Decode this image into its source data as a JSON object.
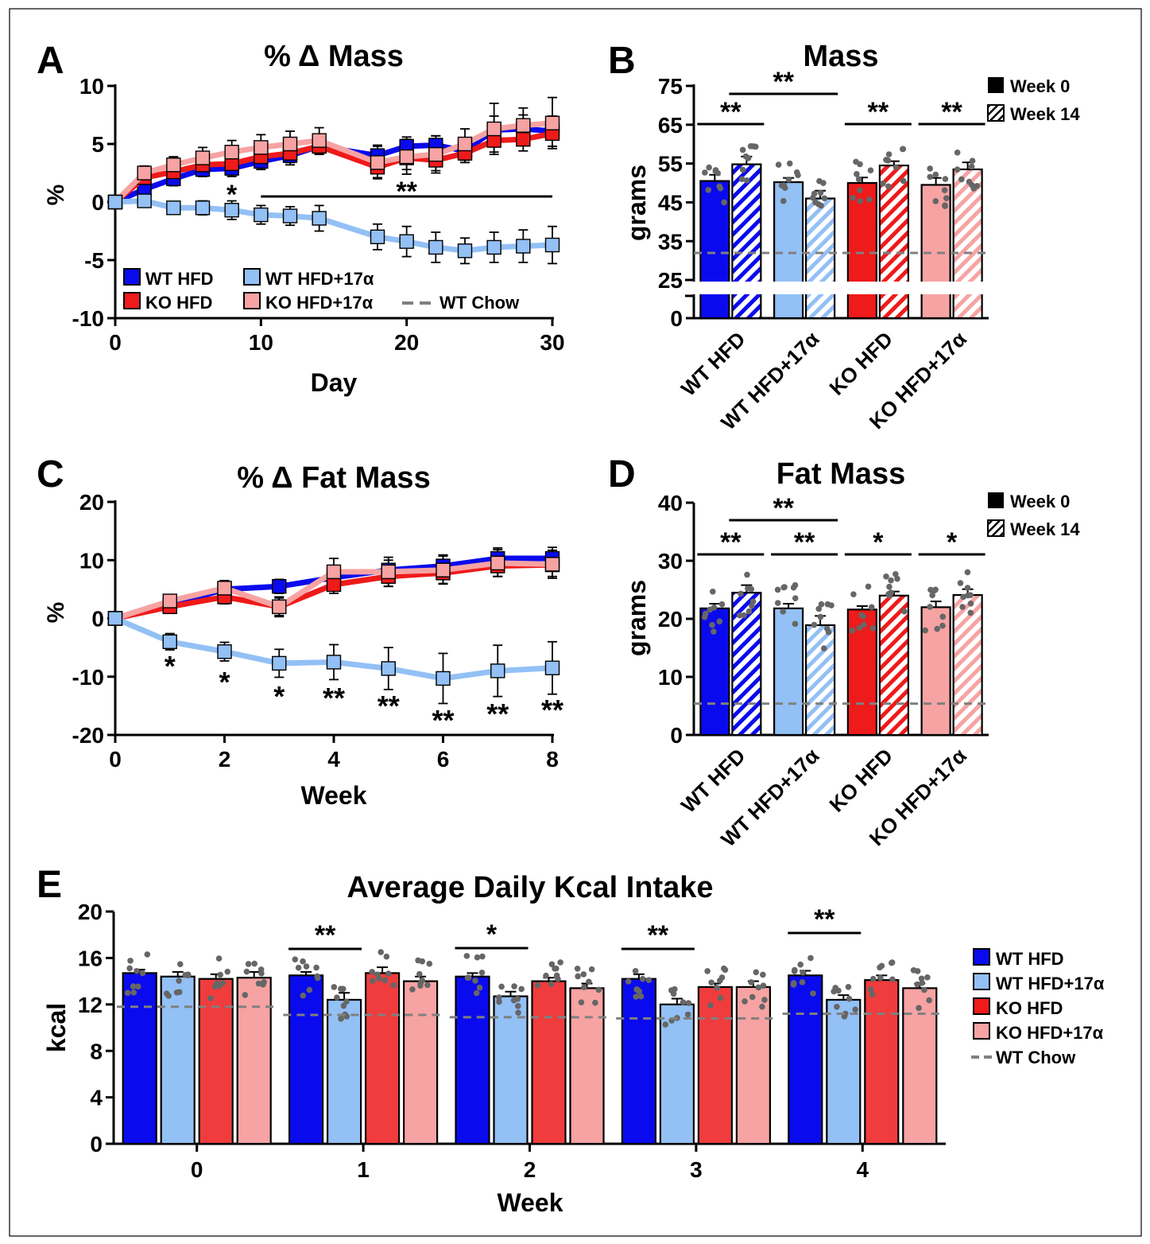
{
  "colors": {
    "wt_hfd": "#0a0aee",
    "wt_hfd17": "#93c0f5",
    "ko_hfd": "#ef1a1a",
    "ko_hfd17": "#f7a3a3",
    "ko_hfd_bar_e": "#f03c3c",
    "chow": "#808080",
    "dots": "#666666"
  },
  "panels": {
    "A": {
      "letter": "A",
      "title": "% Δ Mass",
      "ylabel": "%",
      "xlabel": "Day",
      "yticks": [
        "10",
        "5",
        "0",
        "-5",
        "-10"
      ],
      "xticks": [
        "0",
        "10",
        "20",
        "30"
      ],
      "legend": {
        "wt_hfd": "WT HFD",
        "wt_hfd17": "WT HFD+17α",
        "ko_hfd": "KO HFD",
        "ko_hfd17": "KO HFD+17α",
        "chow": "WT Chow"
      },
      "sig_single": "*",
      "sig_double": "**"
    },
    "B": {
      "letter": "B",
      "title": "Mass",
      "ylabel": "grams",
      "yticks": [
        "75",
        "65",
        "55",
        "45",
        "35",
        "25",
        "0"
      ],
      "legend_week0": "Week 0",
      "legend_week14": "Week 14",
      "sig": [
        "**",
        "**",
        "**",
        "**"
      ]
    },
    "C": {
      "letter": "C",
      "title": "% Δ Fat Mass",
      "ylabel": "%",
      "xlabel": "Week",
      "yticks": [
        "20",
        "10",
        "0",
        "-10",
        "-20"
      ],
      "xticks": [
        "0",
        "2",
        "4",
        "6",
        "8"
      ],
      "sig": [
        "*",
        "*",
        "*",
        "**",
        "**",
        "**",
        "**",
        "**"
      ]
    },
    "D": {
      "letter": "D",
      "title": "Fat Mass",
      "ylabel": "grams",
      "yticks": [
        "40",
        "30",
        "20",
        "10",
        "0"
      ],
      "legend_week0": "Week 0",
      "legend_week14": "Week 14",
      "sig": [
        "**",
        "**",
        "**",
        "*",
        "*"
      ]
    },
    "E": {
      "letter": "E",
      "title": "Average Daily Kcal Intake",
      "ylabel": "kcal",
      "xlabel": "Week",
      "yticks": [
        "20",
        "16",
        "12",
        "8",
        "4",
        "0"
      ],
      "xticks": [
        "0",
        "1",
        "2",
        "3",
        "4"
      ],
      "legend": {
        "wt_hfd": "WT HFD",
        "wt_hfd17": "WT HFD+17α",
        "ko_hfd": "KO HFD",
        "ko_hfd17": "KO HFD+17α",
        "chow": "WT Chow"
      },
      "sig": [
        "**",
        "*",
        "**",
        "**"
      ]
    }
  },
  "group_labels": [
    "WT HFD",
    "WT HFD+17α",
    "KO HFD",
    "KO HFD+17α"
  ],
  "chart_data": [
    {
      "panel": "A",
      "type": "line",
      "title": "% Δ Mass",
      "xlabel": "Day",
      "ylabel": "%",
      "xlim": [
        0,
        30
      ],
      "ylim": [
        -10,
        10
      ],
      "x": [
        0,
        2,
        4,
        6,
        8,
        10,
        12,
        14,
        18,
        20,
        22,
        24,
        26,
        28,
        30
      ],
      "series": [
        {
          "name": "WT HFD",
          "values": [
            0,
            1.1,
            2.0,
            2.8,
            2.9,
            3.5,
            4.0,
            4.8,
            4.0,
            4.8,
            4.9,
            4.4,
            6.2,
            6.3,
            6.1
          ],
          "err": [
            0,
            0.5,
            0.6,
            0.6,
            0.7,
            0.7,
            0.8,
            0.6,
            0.9,
            0.8,
            0.8,
            0.8,
            1.2,
            1.2,
            1.3
          ]
        },
        {
          "name": "KO HFD",
          "values": [
            0,
            2.1,
            2.6,
            3.2,
            3.3,
            3.9,
            4.2,
            4.8,
            3.0,
            3.8,
            3.6,
            4.2,
            5.3,
            5.4,
            5.9
          ],
          "err": [
            0,
            0.5,
            0.6,
            0.7,
            0.8,
            0.8,
            0.8,
            0.7,
            0.9,
            1.0,
            0.9,
            0.8,
            1.0,
            1.0,
            1.1
          ]
        },
        {
          "name": "KO HFD+17α",
          "values": [
            0,
            2.5,
            3.2,
            3.8,
            4.3,
            4.7,
            5.0,
            5.3,
            3.4,
            3.9,
            4.1,
            5.0,
            6.3,
            6.6,
            6.8
          ],
          "err": [
            0,
            0.6,
            0.7,
            0.9,
            1.0,
            1.1,
            1.1,
            1.1,
            1.4,
            1.5,
            1.6,
            1.3,
            2.2,
            1.5,
            2.2
          ]
        },
        {
          "name": "WT HFD+17α",
          "values": [
            0,
            0.1,
            -0.5,
            -0.5,
            -0.7,
            -1.1,
            -1.2,
            -1.4,
            -3.0,
            -3.4,
            -3.9,
            -4.2,
            -3.9,
            -3.8,
            -3.7
          ],
          "err": [
            0,
            0.4,
            0.5,
            0.6,
            0.8,
            0.8,
            0.8,
            1.1,
            1.1,
            1.3,
            1.3,
            1.1,
            1.3,
            1.4,
            1.6
          ]
        }
      ],
      "reference": {
        "name": "WT Chow",
        "style": "dashed"
      },
      "annotations": [
        {
          "text": "*",
          "x": 8
        },
        {
          "text": "**",
          "x_range": [
            10,
            30
          ]
        }
      ]
    },
    {
      "panel": "B",
      "type": "bar",
      "title": "Mass",
      "ylabel": "grams",
      "categories": [
        "WT HFD",
        "WT HFD+17α",
        "KO HFD",
        "KO HFD+17α"
      ],
      "axis_break": [
        0,
        25
      ],
      "ylim": [
        25,
        75
      ],
      "series": [
        {
          "name": "Week 0",
          "values": [
            50.5,
            50.2,
            50.0,
            49.5
          ],
          "err": [
            1.6,
            1.1,
            1.4,
            1.8
          ]
        },
        {
          "name": "Week 14",
          "values": [
            54.8,
            46.0,
            54.5,
            53.5
          ],
          "err": [
            2.0,
            2.0,
            1.1,
            1.8
          ]
        }
      ],
      "reference": {
        "name": "WT Chow",
        "value": 31.5
      },
      "annotations": [
        "** WT HFD wk0 vs wk14",
        "** WT HFD vs WT HFD+17α wk14",
        "** KO HFD wk0 vs wk14",
        "** KO HFD+17α wk0 vs wk14"
      ]
    },
    {
      "panel": "C",
      "type": "line",
      "title": "% Δ Fat Mass",
      "xlabel": "Week",
      "ylabel": "%",
      "xlim": [
        0,
        8
      ],
      "ylim": [
        -20,
        20
      ],
      "x": [
        0,
        1,
        2,
        3,
        4,
        5,
        6,
        7,
        8
      ],
      "series": [
        {
          "name": "WT HFD",
          "values": [
            0,
            2.2,
            5.0,
            5.5,
            7.0,
            8.3,
            9.0,
            10.3,
            10.3
          ],
          "err": [
            0,
            1.1,
            1.3,
            1.2,
            1.6,
            1.7,
            1.9,
            1.8,
            1.9
          ]
        },
        {
          "name": "KO HFD",
          "values": [
            0,
            2.0,
            3.7,
            2.0,
            5.8,
            7.2,
            7.8,
            9.0,
            9.2
          ],
          "err": [
            0,
            1.0,
            1.2,
            1.5,
            1.5,
            1.7,
            1.8,
            1.8,
            2.0
          ]
        },
        {
          "name": "KO HFD+17α",
          "values": [
            0,
            3.0,
            5.2,
            2.0,
            8.0,
            8.0,
            8.3,
            9.5,
            9.3
          ],
          "err": [
            0,
            1.0,
            1.3,
            1.7,
            2.3,
            2.5,
            2.4,
            2.3,
            2.4
          ]
        },
        {
          "name": "WT HFD+17α",
          "values": [
            0,
            -4.0,
            -5.7,
            -7.7,
            -7.5,
            -8.6,
            -10.3,
            -9.0,
            -8.5
          ],
          "err": [
            0,
            1.4,
            1.6,
            2.4,
            3.0,
            3.6,
            4.3,
            4.4,
            4.5
          ]
        }
      ],
      "annotations": [
        "*",
        "*",
        "*",
        "**",
        "**",
        "**",
        "**",
        "**"
      ]
    },
    {
      "panel": "D",
      "type": "bar",
      "title": "Fat Mass",
      "ylabel": "grams",
      "categories": [
        "WT HFD",
        "WT HFD+17α",
        "KO HFD",
        "KO HFD+17α"
      ],
      "ylim": [
        0,
        40
      ],
      "series": [
        {
          "name": "Week 0",
          "values": [
            21.8,
            21.8,
            21.6,
            22.0
          ],
          "err": [
            0.8,
            0.8,
            0.6,
            1.0
          ]
        },
        {
          "name": "Week 14",
          "values": [
            24.5,
            18.9,
            24.0,
            24.1
          ],
          "err": [
            1.3,
            1.6,
            0.7,
            1.0
          ]
        }
      ],
      "reference": {
        "name": "WT Chow",
        "value": 5.4
      },
      "annotations": [
        "** WT HFD wk0 vs wk14",
        "** WT HFD vs WT HFD+17α wk14",
        "** WT HFD+17α wk0 vs wk14",
        "* KO HFD wk0 vs wk14",
        "* KO HFD+17α wk0 vs wk14"
      ]
    },
    {
      "panel": "E",
      "type": "bar",
      "title": "Average Daily Kcal Intake",
      "xlabel": "Week",
      "ylabel": "kcal",
      "categories": [
        "0",
        "1",
        "2",
        "3",
        "4"
      ],
      "ylim": [
        0,
        20
      ],
      "series": [
        {
          "name": "WT HFD",
          "values": [
            14.7,
            14.5,
            14.4,
            14.2,
            14.5
          ],
          "err": [
            0.3,
            0.3,
            0.3,
            0.4,
            0.4
          ]
        },
        {
          "name": "WT HFD+17α",
          "values": [
            14.4,
            12.4,
            12.7,
            12.0,
            12.4
          ],
          "err": [
            0.4,
            0.6,
            0.4,
            0.5,
            0.4
          ]
        },
        {
          "name": "KO HFD",
          "values": [
            14.2,
            14.7,
            14.0,
            13.5,
            14.1
          ],
          "err": [
            0.4,
            0.5,
            0.3,
            0.3,
            0.4
          ]
        },
        {
          "name": "KO HFD+17α",
          "values": [
            14.3,
            14.0,
            13.4,
            13.5,
            13.4
          ],
          "err": [
            0.5,
            0.4,
            0.4,
            0.5,
            0.4
          ]
        }
      ],
      "reference": {
        "name": "WT Chow",
        "values": [
          11.8,
          11.1,
          10.9,
          10.8,
          11.2
        ]
      },
      "annotations": [
        "** week 1",
        "* week 2",
        "** week 3",
        "** week 4"
      ]
    }
  ]
}
